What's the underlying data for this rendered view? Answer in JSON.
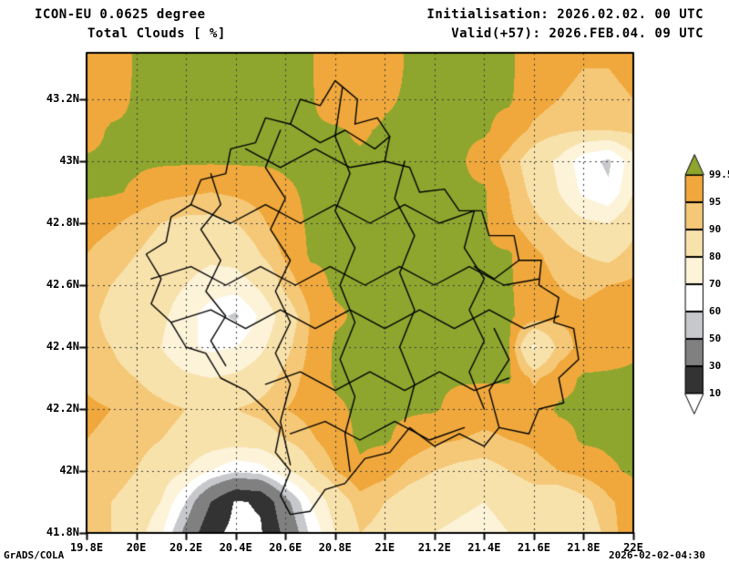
{
  "header": {
    "model_line": "ICON-EU 0.0625 degree",
    "field_line": "Total Clouds  [ %]",
    "init_line": "Initialisation: 2026.02.02. 00 UTC",
    "valid_line": "Valid(+57): 2026.FEB.04. 09 UTC"
  },
  "footer": {
    "left": "GrADS/COLA",
    "right": "2026-02-02-04:30"
  },
  "chart_data": {
    "type": "heatmap",
    "title": "Total Clouds  [ %]",
    "model": "ICON-EU 0.0625 degree",
    "units": "%",
    "xlim": [
      19.8,
      22.0
    ],
    "ylim": [
      41.8,
      43.35
    ],
    "x_tick_values": [
      19.8,
      20,
      20.2,
      20.4,
      20.6,
      20.8,
      21,
      21.2,
      21.4,
      21.6,
      21.8,
      22
    ],
    "x_tick_labels": [
      "19.8E",
      "20E",
      "20.2E",
      "20.4E",
      "20.6E",
      "20.8E",
      "21E",
      "21.2E",
      "21.4E",
      "21.6E",
      "21.8E",
      "22E"
    ],
    "y_tick_values": [
      41.8,
      42,
      42.2,
      42.4,
      42.6,
      42.8,
      43,
      43.2
    ],
    "y_tick_labels": [
      "41.8N",
      "42N",
      "42.2N",
      "42.4N",
      "42.6N",
      "42.8N",
      "43N",
      "43.2N"
    ],
    "grid_lines": "dotted",
    "legend": {
      "position": "right",
      "thresholds": [
        10,
        30,
        50,
        60,
        70,
        80,
        90,
        95,
        99.5
      ],
      "labels_top_to_bottom": [
        "99.5",
        "95",
        "90",
        "80",
        "70",
        "60",
        "50",
        "30",
        "10"
      ],
      "bin_colors": [
        "#ffffff",
        "#333333",
        "#808080",
        "#c6c8cc",
        "#ffffff",
        "#fcf3d9",
        "#f8e2ac",
        "#f5c878",
        "#f0a83c",
        "#8ea62e"
      ]
    },
    "grid": {
      "lon_start": 19.8,
      "lon_step": 0.1,
      "lat_start": 43.3,
      "lat_step": -0.1,
      "values": [
        [
          96,
          97,
          100,
          100,
          100,
          100,
          100,
          100,
          100,
          100,
          96,
          96,
          98,
          100,
          100,
          100,
          100,
          100,
          98,
          96,
          95,
          95,
          96
        ],
        [
          97,
          98,
          100,
          100,
          100,
          100,
          100,
          100,
          100,
          100,
          97,
          96,
          99,
          100,
          100,
          100,
          100,
          100,
          97,
          95,
          94,
          94,
          95
        ],
        [
          98,
          100,
          100,
          100,
          100,
          100,
          100,
          100,
          100,
          100,
          100,
          99,
          100,
          100,
          100,
          100,
          100,
          98,
          94,
          92,
          90,
          90,
          92
        ],
        [
          100,
          100,
          100,
          100,
          100,
          100,
          100,
          100,
          100,
          100,
          100,
          100,
          100,
          100,
          100,
          100,
          98,
          93,
          86,
          78,
          64,
          58,
          76
        ],
        [
          100,
          100,
          99,
          97,
          96,
          95,
          96,
          97,
          99,
          100,
          100,
          100,
          100,
          100,
          100,
          100,
          100,
          95,
          88,
          80,
          68,
          62,
          80
        ],
        [
          98,
          96,
          93,
          90,
          88,
          88,
          90,
          94,
          98,
          100,
          100,
          100,
          100,
          100,
          100,
          100,
          100,
          96,
          92,
          88,
          82,
          80,
          88
        ],
        [
          95,
          92,
          90,
          87,
          84,
          82,
          84,
          90,
          96,
          100,
          100,
          100,
          100,
          100,
          100,
          100,
          100,
          100,
          96,
          93,
          90,
          88,
          92
        ],
        [
          93,
          90,
          88,
          84,
          80,
          76,
          75,
          82,
          92,
          98,
          100,
          100,
          100,
          100,
          100,
          100,
          100,
          100,
          97,
          95,
          94,
          95,
          96
        ],
        [
          92,
          88,
          86,
          82,
          75,
          64,
          58,
          72,
          85,
          95,
          99,
          100,
          100,
          100,
          100,
          100,
          100,
          100,
          98,
          96,
          96,
          97,
          98
        ],
        [
          92,
          90,
          86,
          80,
          72,
          68,
          70,
          78,
          88,
          96,
          100,
          100,
          100,
          100,
          100,
          100,
          100,
          100,
          78,
          92,
          97,
          98,
          99
        ],
        [
          94,
          92,
          90,
          86,
          82,
          80,
          82,
          86,
          92,
          97,
          100,
          100,
          100,
          100,
          100,
          100,
          100,
          100,
          94,
          98,
          100,
          100,
          100
        ],
        [
          96,
          95,
          94,
          92,
          90,
          89,
          90,
          92,
          95,
          97,
          99,
          100,
          100,
          100,
          100,
          98,
          97,
          97,
          98,
          100,
          100,
          100,
          100
        ],
        [
          95,
          94,
          92,
          90,
          88,
          86,
          85,
          86,
          90,
          94,
          98,
          100,
          100,
          98,
          96,
          95,
          94,
          95,
          96,
          98,
          100,
          100,
          100
        ],
        [
          93,
          92,
          90,
          86,
          80,
          70,
          62,
          65,
          78,
          88,
          95,
          99,
          97,
          93,
          90,
          88,
          87,
          90,
          93,
          95,
          97,
          99,
          100
        ],
        [
          92,
          90,
          88,
          80,
          60,
          30,
          8,
          12,
          45,
          70,
          85,
          93,
          90,
          86,
          84,
          82,
          80,
          84,
          86,
          84,
          88,
          94,
          98
        ],
        [
          92,
          90,
          85,
          72,
          45,
          15,
          5,
          8,
          35,
          62,
          80,
          90,
          88,
          82,
          80,
          78,
          76,
          80,
          82,
          80,
          85,
          92,
          100
        ]
      ]
    },
    "borders": {
      "outline": [
        [
          20.83,
          43.24
        ],
        [
          20.89,
          43.2
        ],
        [
          20.88,
          43.12
        ],
        [
          20.97,
          43.14
        ],
        [
          21.02,
          43.08
        ],
        [
          21.0,
          43.0
        ],
        [
          21.1,
          42.98
        ],
        [
          21.14,
          42.9
        ],
        [
          21.24,
          42.91
        ],
        [
          21.3,
          42.84
        ],
        [
          21.39,
          42.84
        ],
        [
          21.42,
          42.76
        ],
        [
          21.52,
          42.76
        ],
        [
          21.54,
          42.68
        ],
        [
          21.63,
          42.68
        ],
        [
          21.62,
          42.6
        ],
        [
          21.7,
          42.56
        ],
        [
          21.68,
          42.48
        ],
        [
          21.76,
          42.46
        ],
        [
          21.78,
          42.36
        ],
        [
          21.7,
          42.3
        ],
        [
          21.72,
          42.22
        ],
        [
          21.62,
          42.2
        ],
        [
          21.58,
          42.12
        ],
        [
          21.46,
          42.14
        ],
        [
          21.4,
          42.08
        ],
        [
          21.3,
          42.12
        ],
        [
          21.2,
          42.08
        ],
        [
          21.1,
          42.14
        ],
        [
          21.02,
          42.06
        ],
        [
          20.92,
          42.04
        ],
        [
          20.84,
          41.96
        ],
        [
          20.76,
          41.94
        ],
        [
          20.7,
          41.87
        ],
        [
          20.62,
          41.86
        ],
        [
          20.58,
          41.92
        ],
        [
          20.62,
          42.0
        ],
        [
          20.56,
          42.06
        ],
        [
          20.58,
          42.14
        ],
        [
          20.52,
          42.2
        ],
        [
          20.44,
          42.26
        ],
        [
          20.34,
          42.3
        ],
        [
          20.28,
          42.38
        ],
        [
          20.2,
          42.4
        ],
        [
          20.14,
          42.48
        ],
        [
          20.06,
          42.54
        ],
        [
          20.1,
          42.62
        ],
        [
          20.04,
          42.7
        ],
        [
          20.12,
          42.74
        ],
        [
          20.14,
          42.82
        ],
        [
          20.22,
          42.86
        ],
        [
          20.26,
          42.94
        ],
        [
          20.36,
          42.96
        ],
        [
          20.38,
          43.04
        ],
        [
          20.48,
          43.06
        ],
        [
          20.52,
          43.14
        ],
        [
          20.62,
          43.12
        ],
        [
          20.66,
          43.2
        ],
        [
          20.74,
          43.18
        ],
        [
          20.8,
          43.26
        ]
      ],
      "internal": [
        [
          [
            20.3,
            42.96
          ],
          [
            20.34,
            42.86
          ],
          [
            20.26,
            42.78
          ],
          [
            20.34,
            42.68
          ],
          [
            20.28,
            42.58
          ],
          [
            20.36,
            42.5
          ],
          [
            20.3,
            42.42
          ],
          [
            20.36,
            42.34
          ]
        ],
        [
          [
            20.58,
            43.1
          ],
          [
            20.52,
            42.98
          ],
          [
            20.6,
            42.88
          ],
          [
            20.54,
            42.78
          ],
          [
            20.62,
            42.68
          ],
          [
            20.56,
            42.58
          ],
          [
            20.62,
            42.48
          ],
          [
            20.56,
            42.38
          ],
          [
            20.62,
            42.28
          ],
          [
            20.58,
            42.16
          ],
          [
            20.62,
            42.02
          ]
        ],
        [
          [
            20.83,
            43.24
          ],
          [
            20.8,
            43.08
          ],
          [
            20.86,
            42.96
          ],
          [
            20.8,
            42.84
          ],
          [
            20.88,
            42.72
          ],
          [
            20.82,
            42.6
          ],
          [
            20.88,
            42.48
          ],
          [
            20.82,
            42.36
          ],
          [
            20.88,
            42.24
          ],
          [
            20.84,
            42.12
          ],
          [
            20.86,
            42.0
          ]
        ],
        [
          [
            21.08,
            43.0
          ],
          [
            21.04,
            42.88
          ],
          [
            21.12,
            42.76
          ],
          [
            21.06,
            42.64
          ],
          [
            21.12,
            42.52
          ],
          [
            21.06,
            42.4
          ],
          [
            21.12,
            42.28
          ],
          [
            21.08,
            42.16
          ]
        ],
        [
          [
            21.36,
            42.84
          ],
          [
            21.32,
            42.72
          ],
          [
            21.4,
            42.62
          ],
          [
            21.34,
            42.52
          ],
          [
            21.4,
            42.42
          ],
          [
            21.34,
            42.32
          ],
          [
            21.4,
            42.2
          ]
        ],
        [
          [
            20.14,
            42.48
          ],
          [
            20.3,
            42.52
          ],
          [
            20.44,
            42.46
          ],
          [
            20.58,
            42.52
          ],
          [
            20.72,
            42.46
          ],
          [
            20.86,
            42.52
          ],
          [
            21.0,
            42.46
          ],
          [
            21.14,
            42.52
          ],
          [
            21.28,
            42.46
          ],
          [
            21.42,
            42.52
          ],
          [
            21.56,
            42.46
          ],
          [
            21.7,
            42.5
          ]
        ],
        [
          [
            20.06,
            42.62
          ],
          [
            20.22,
            42.66
          ],
          [
            20.36,
            42.6
          ],
          [
            20.5,
            42.66
          ],
          [
            20.64,
            42.6
          ],
          [
            20.78,
            42.66
          ],
          [
            20.92,
            42.6
          ],
          [
            21.06,
            42.66
          ],
          [
            21.2,
            42.6
          ],
          [
            21.34,
            42.66
          ],
          [
            21.48,
            42.6
          ],
          [
            21.62,
            42.62
          ]
        ],
        [
          [
            20.22,
            42.86
          ],
          [
            20.38,
            42.8
          ],
          [
            20.52,
            42.86
          ],
          [
            20.66,
            42.8
          ],
          [
            20.8,
            42.86
          ],
          [
            20.94,
            42.8
          ],
          [
            21.08,
            42.86
          ],
          [
            21.22,
            42.8
          ],
          [
            21.36,
            42.84
          ]
        ],
        [
          [
            20.44,
            43.04
          ],
          [
            20.58,
            42.98
          ],
          [
            20.72,
            43.04
          ],
          [
            20.86,
            42.98
          ],
          [
            21.0,
            43.0
          ]
        ],
        [
          [
            20.52,
            42.28
          ],
          [
            20.66,
            42.32
          ],
          [
            20.8,
            42.26
          ],
          [
            20.94,
            42.32
          ],
          [
            21.08,
            42.26
          ],
          [
            21.22,
            42.32
          ],
          [
            21.36,
            42.26
          ],
          [
            21.5,
            42.3
          ]
        ],
        [
          [
            20.62,
            42.12
          ],
          [
            20.76,
            42.16
          ],
          [
            20.9,
            42.1
          ],
          [
            21.04,
            42.16
          ],
          [
            21.18,
            42.1
          ],
          [
            21.32,
            42.14
          ]
        ],
        [
          [
            20.62,
            43.12
          ],
          [
            20.74,
            43.06
          ],
          [
            20.84,
            43.1
          ],
          [
            20.96,
            43.04
          ],
          [
            21.02,
            43.08
          ]
        ],
        [
          [
            21.46,
            42.14
          ],
          [
            21.42,
            42.26
          ],
          [
            21.5,
            42.36
          ],
          [
            21.44,
            42.46
          ]
        ],
        [
          [
            21.54,
            42.68
          ],
          [
            21.44,
            42.62
          ],
          [
            21.36,
            42.66
          ]
        ]
      ]
    }
  }
}
